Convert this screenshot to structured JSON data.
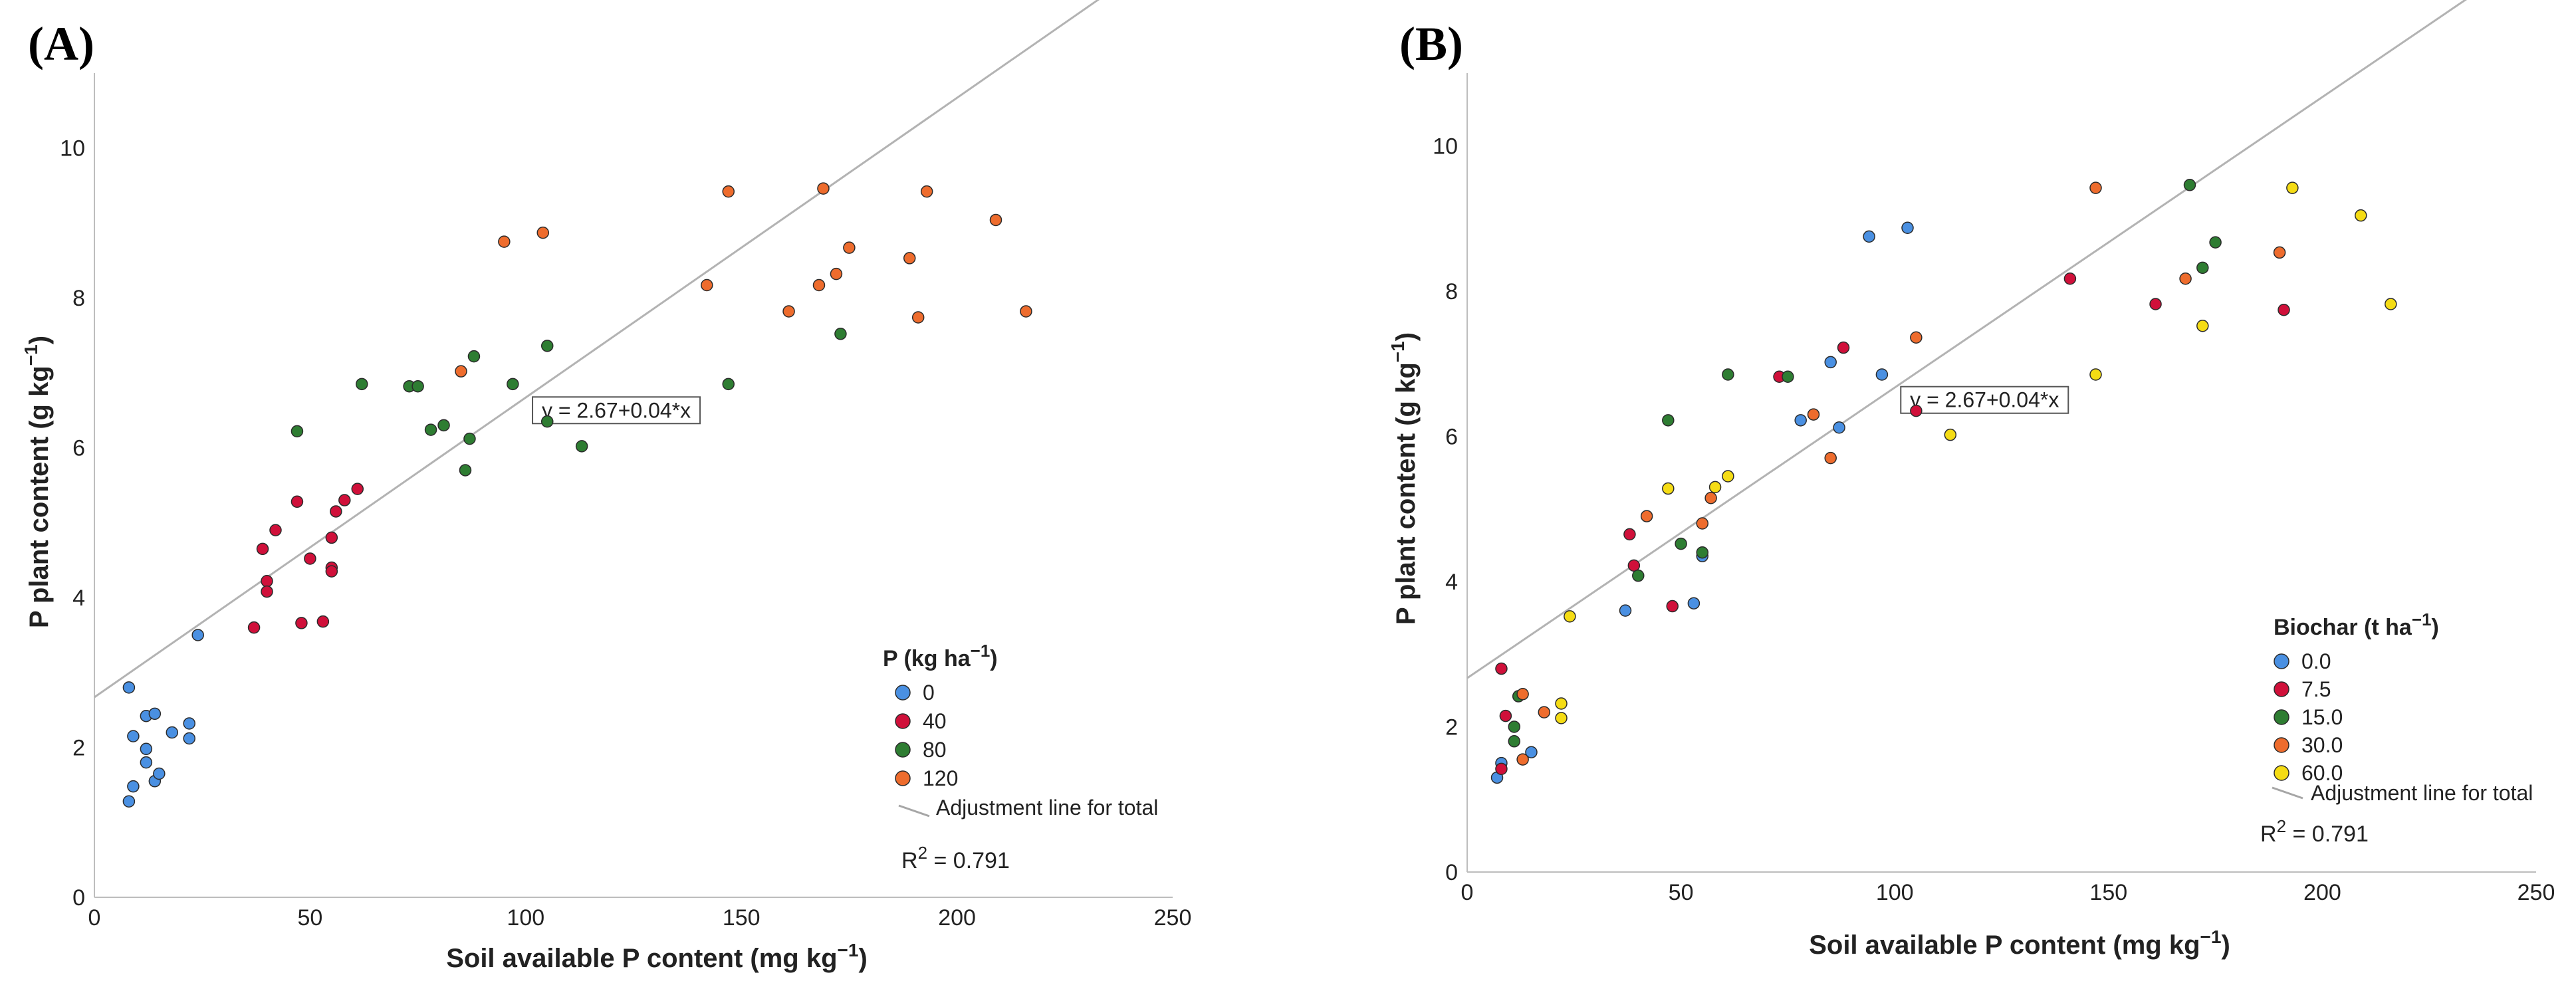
{
  "chart_data": [
    {
      "type": "scatter",
      "panel_label": "(A)",
      "xlabel": "Soil available P content (mg kg",
      "xlabel_sup": "−1",
      "xlabel_close": ")",
      "ylabel": "P plant content (g kg",
      "ylabel_sup": "−1",
      "ylabel_close": ")",
      "xlim": [
        0,
        250
      ],
      "ylim": [
        0,
        11
      ],
      "x_ticks": [
        "0",
        "50",
        "100",
        "150",
        "200",
        "250"
      ],
      "y_ticks": [
        "0",
        "2",
        "4",
        "6",
        "8",
        "10"
      ],
      "legend": {
        "title": "P (kg ha",
        "title_sup": "−1",
        "title_close": ")",
        "position": "bottom-right",
        "line_label": "Adjustment line for total"
      },
      "fit": {
        "equation": "y = 2.67+0.04*x",
        "intercept": 2.67,
        "slope": 0.04,
        "x_range": [
          0,
          235
        ]
      },
      "r2_label": "R",
      "r2_sup": "2",
      "r2_value": " =  0.791",
      "series": [
        {
          "name": "0",
          "color": "#4a90e2",
          "points": [
            [
              8,
              2.8
            ],
            [
              12,
              2.42
            ],
            [
              14,
              2.45
            ],
            [
              18,
              2.2
            ],
            [
              22,
              2.32
            ],
            [
              22,
              2.12
            ],
            [
              9,
              2.15
            ],
            [
              12,
              1.98
            ],
            [
              12,
              1.8
            ],
            [
              14,
              1.55
            ],
            [
              15,
              1.65
            ],
            [
              9,
              1.48
            ],
            [
              8,
              1.28
            ],
            [
              24,
              3.5
            ]
          ]
        },
        {
          "name": "40",
          "color": "#d0103a",
          "points": [
            [
              37,
              3.6
            ],
            [
              39,
              4.65
            ],
            [
              40,
              4.22
            ],
            [
              40,
              4.08
            ],
            [
              42,
              4.9
            ],
            [
              47,
              5.28
            ],
            [
              48,
              3.66
            ],
            [
              50,
              4.52
            ],
            [
              53,
              3.68
            ],
            [
              55,
              4.8
            ],
            [
              55,
              4.4
            ],
            [
              55,
              4.35
            ],
            [
              56,
              5.15
            ],
            [
              58,
              5.3
            ],
            [
              61,
              5.45
            ]
          ]
        },
        {
          "name": "80",
          "color": "#2e7d32",
          "points": [
            [
              47,
              6.22
            ],
            [
              62,
              6.85
            ],
            [
              73,
              6.82
            ],
            [
              75,
              6.82
            ],
            [
              78,
              6.24
            ],
            [
              81,
              6.3
            ],
            [
              86,
              5.7
            ],
            [
              87,
              6.12
            ],
            [
              88,
              7.22
            ],
            [
              97,
              6.85
            ],
            [
              105,
              6.35
            ],
            [
              105,
              7.36
            ],
            [
              113,
              6.02
            ],
            [
              147,
              6.85
            ],
            [
              173,
              7.52
            ]
          ]
        },
        {
          "name": "120",
          "color": "#ee6c2d",
          "points": [
            [
              85,
              7.02
            ],
            [
              95,
              8.75
            ],
            [
              104,
              8.87
            ],
            [
              142,
              8.17
            ],
            [
              147,
              9.42
            ],
            [
              161,
              7.82
            ],
            [
              168,
              8.17
            ],
            [
              169,
              9.46
            ],
            [
              172,
              8.32
            ],
            [
              175,
              8.67
            ],
            [
              189,
              8.53
            ],
            [
              191,
              7.74
            ],
            [
              193,
              9.42
            ],
            [
              209,
              9.04
            ],
            [
              216,
              7.82
            ]
          ]
        }
      ]
    },
    {
      "type": "scatter",
      "panel_label": "(B)",
      "xlabel": "Soil available P content (mg kg",
      "xlabel_sup": "−1",
      "xlabel_close": ")",
      "ylabel": "P plant content (g kg",
      "ylabel_sup": "−1",
      "ylabel_close": ")",
      "xlim": [
        0,
        250
      ],
      "ylim": [
        0,
        11
      ],
      "x_ticks": [
        "0",
        "50",
        "100",
        "150",
        "200",
        "250"
      ],
      "y_ticks": [
        "0",
        "2",
        "4",
        "6",
        "8",
        "10"
      ],
      "legend": {
        "title": "Biochar (t ha",
        "title_sup": "−1",
        "title_close": ")",
        "position": "bottom-right",
        "line_label": "Adjustment line for total"
      },
      "fit": {
        "equation": "y = 2.67+0.04*x",
        "intercept": 2.67,
        "slope": 0.04,
        "x_range": [
          0,
          235
        ]
      },
      "r2_label": "R",
      "r2_sup": "2",
      "r2_value": " =  0.791",
      "series": [
        {
          "name": "0.0",
          "color": "#4a90e2",
          "points": [
            [
              7,
              1.3
            ],
            [
              8,
              1.5
            ],
            [
              15,
              1.65
            ],
            [
              37,
              3.6
            ],
            [
              53,
              3.7
            ],
            [
              55,
              4.35
            ],
            [
              78,
              6.22
            ],
            [
              85,
              7.02
            ],
            [
              87,
              6.12
            ],
            [
              94,
              8.75
            ],
            [
              97,
              6.85
            ],
            [
              103,
              8.87
            ]
          ]
        },
        {
          "name": "7.5",
          "color": "#d0103a",
          "points": [
            [
              8,
              2.8
            ],
            [
              9,
              2.15
            ],
            [
              8,
              1.42
            ],
            [
              38,
              4.65
            ],
            [
              39,
              4.22
            ],
            [
              48,
              3.66
            ],
            [
              73,
              6.82
            ],
            [
              88,
              7.22
            ],
            [
              105,
              6.35
            ],
            [
              141,
              8.17
            ],
            [
              161,
              7.82
            ],
            [
              191,
              7.74
            ]
          ]
        },
        {
          "name": "15.0",
          "color": "#2e7d32",
          "points": [
            [
              11,
              2.0
            ],
            [
              12,
              2.42
            ],
            [
              11,
              1.8
            ],
            [
              40,
              4.08
            ],
            [
              47,
              6.22
            ],
            [
              50,
              4.52
            ],
            [
              55,
              4.4
            ],
            [
              61,
              6.85
            ],
            [
              75,
              6.82
            ],
            [
              169,
              9.46
            ],
            [
              172,
              8.32
            ],
            [
              175,
              8.67
            ]
          ]
        },
        {
          "name": "30.0",
          "color": "#ee6c2d",
          "points": [
            [
              13,
              2.45
            ],
            [
              13,
              1.55
            ],
            [
              18,
              2.2
            ],
            [
              42,
              4.9
            ],
            [
              55,
              4.8
            ],
            [
              57,
              5.15
            ],
            [
              81,
              6.3
            ],
            [
              85,
              5.7
            ],
            [
              105,
              7.36
            ],
            [
              147,
              9.42
            ],
            [
              168,
              8.17
            ],
            [
              190,
              8.53
            ]
          ]
        },
        {
          "name": "60.0",
          "color": "#f5dc14",
          "points": [
            [
              22,
              2.32
            ],
            [
              22,
              2.12
            ],
            [
              24,
              3.52
            ],
            [
              47,
              5.28
            ],
            [
              58,
              5.3
            ],
            [
              61,
              5.45
            ],
            [
              113,
              6.02
            ],
            [
              147,
              6.85
            ],
            [
              172,
              7.52
            ],
            [
              193,
              9.42
            ],
            [
              209,
              9.04
            ],
            [
              216,
              7.82
            ]
          ]
        }
      ]
    }
  ]
}
